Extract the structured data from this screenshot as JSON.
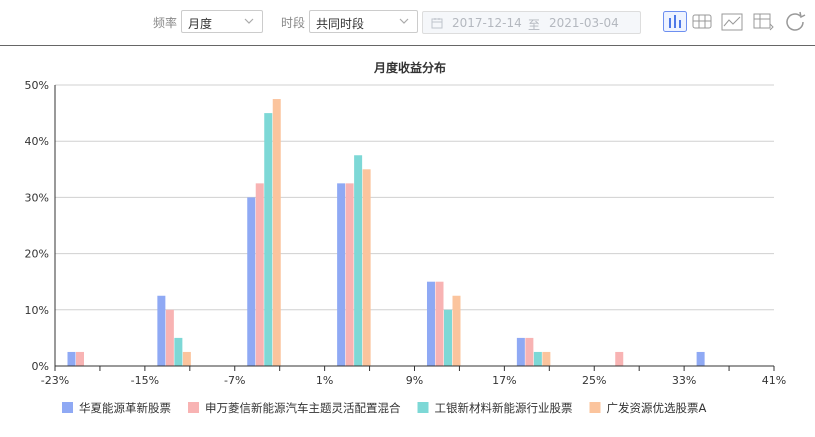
{
  "toolbar": {
    "frequency_label": "频率",
    "frequency_value": "月度",
    "period_label": "时段",
    "period_value": "共同时段",
    "date_start": "2017-12-14",
    "date_sep": "至",
    "date_end": "2021-03-04",
    "icons": [
      "bar-chart-icon",
      "table-icon",
      "line-chart-icon",
      "export-icon",
      "refresh-icon"
    ]
  },
  "chart_data": {
    "type": "bar",
    "title": "月度收益分布",
    "x_ticks": [
      "-23%",
      "-15%",
      "-7%",
      "1%",
      "9%",
      "17%",
      "25%",
      "33%",
      "41%"
    ],
    "y_ticks": [
      "0%",
      "10%",
      "20%",
      "30%",
      "40%",
      "50%"
    ],
    "ylim": [
      0,
      50
    ],
    "grid": true,
    "legend_position": "bottom",
    "bins": [
      "-23%~-15%",
      "-15%~-7%",
      "-7%~1%",
      "1%~9%",
      "9%~17%",
      "17%~25%",
      "25%~33%",
      "33%~41%"
    ],
    "series": [
      {
        "name": "华夏能源革新股票",
        "color": "#8fa9f4",
        "values": [
          2.5,
          12.5,
          30,
          32.5,
          15,
          5,
          0,
          2.5
        ]
      },
      {
        "name": "申万菱信新能源汽车主题灵活配置混合",
        "color": "#f8b3b3",
        "values": [
          2.5,
          10,
          32.5,
          32.5,
          15,
          5,
          2.5,
          0
        ]
      },
      {
        "name": "工银新材料新能源行业股票",
        "color": "#7dd8d6",
        "values": [
          0,
          5,
          45,
          37.5,
          10,
          2.5,
          0,
          0
        ]
      },
      {
        "name": "广发资源优选股票A",
        "color": "#fbc49d",
        "values": [
          0,
          2.5,
          47.5,
          35,
          12.5,
          2.5,
          0,
          0
        ]
      }
    ]
  }
}
